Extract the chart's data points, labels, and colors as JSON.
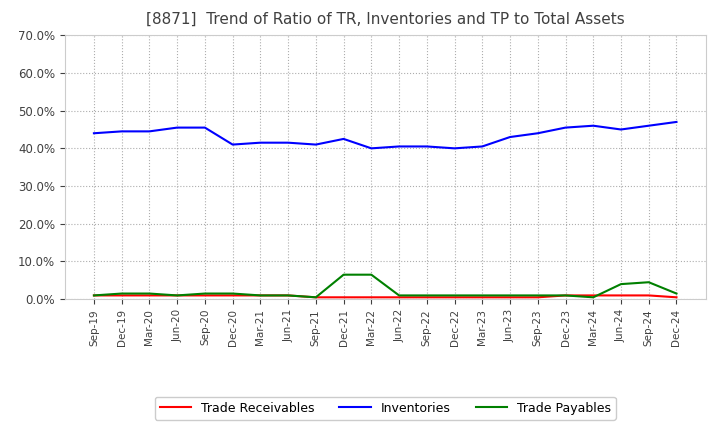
{
  "title": "[8871]  Trend of Ratio of TR, Inventories and TP to Total Assets",
  "x_labels": [
    "Sep-19",
    "Dec-19",
    "Mar-20",
    "Jun-20",
    "Sep-20",
    "Dec-20",
    "Mar-21",
    "Jun-21",
    "Sep-21",
    "Dec-21",
    "Mar-22",
    "Jun-22",
    "Sep-22",
    "Dec-22",
    "Mar-23",
    "Jun-23",
    "Sep-23",
    "Dec-23",
    "Mar-24",
    "Jun-24",
    "Sep-24",
    "Dec-24"
  ],
  "trade_receivables": [
    0.01,
    0.01,
    0.01,
    0.01,
    0.01,
    0.01,
    0.01,
    0.01,
    0.005,
    0.005,
    0.005,
    0.005,
    0.005,
    0.005,
    0.005,
    0.005,
    0.005,
    0.01,
    0.01,
    0.01,
    0.01,
    0.005
  ],
  "inventories": [
    0.44,
    0.445,
    0.445,
    0.455,
    0.455,
    0.41,
    0.415,
    0.415,
    0.41,
    0.425,
    0.4,
    0.405,
    0.405,
    0.4,
    0.405,
    0.43,
    0.44,
    0.455,
    0.46,
    0.45,
    0.46,
    0.47
  ],
  "trade_payables": [
    0.01,
    0.015,
    0.015,
    0.01,
    0.015,
    0.015,
    0.01,
    0.01,
    0.005,
    0.065,
    0.065,
    0.01,
    0.01,
    0.01,
    0.01,
    0.01,
    0.01,
    0.01,
    0.005,
    0.04,
    0.045,
    0.015
  ],
  "ylim": [
    0.0,
    0.7
  ],
  "yticks": [
    0.0,
    0.1,
    0.2,
    0.3,
    0.4,
    0.5,
    0.6,
    0.7
  ],
  "line_colors": {
    "trade_receivables": "#FF0000",
    "inventories": "#0000FF",
    "trade_payables": "#008000"
  },
  "legend_labels": [
    "Trade Receivables",
    "Inventories",
    "Trade Payables"
  ],
  "title_color": "#404040",
  "background_color": "#FFFFFF",
  "plot_bg_color": "#FFFFFF",
  "grid_color": "#999999"
}
